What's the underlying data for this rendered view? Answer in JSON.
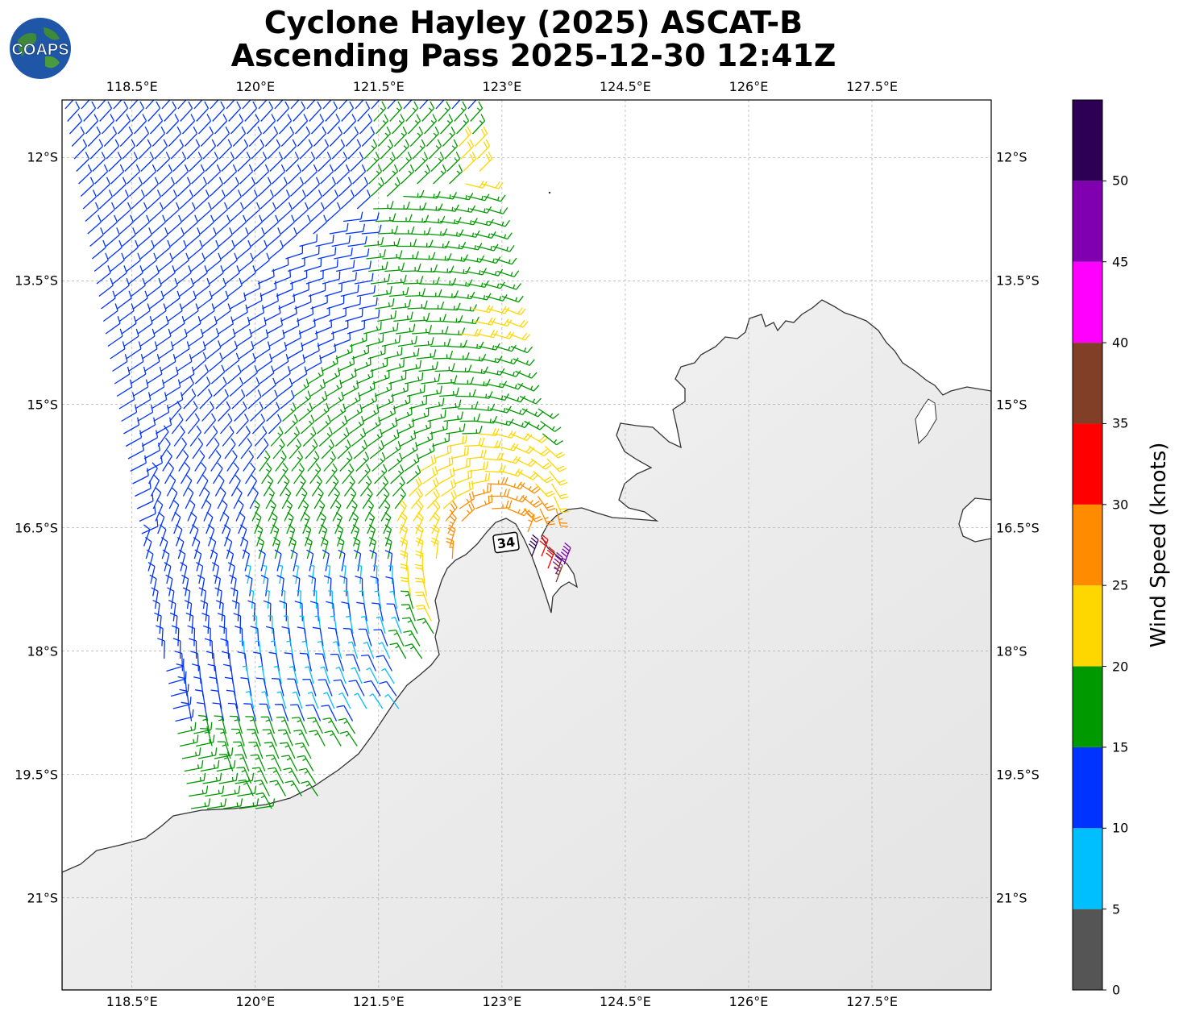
{
  "header": {
    "title_line1": "Cyclone Hayley (2025) ASCAT-B",
    "title_line2": "Ascending Pass 2025-12-30 12:41Z",
    "logo_text": "COAPS"
  },
  "map": {
    "lon_ticks": [
      "118.5°E",
      "120°E",
      "121.5°E",
      "123°E",
      "124.5°E",
      "126°E",
      "127.5°E"
    ],
    "lat_ticks": [
      "12°S",
      "13.5°S",
      "15°S",
      "16.5°S",
      "18°S",
      "19.5°S",
      "21°S"
    ],
    "storm_marker": {
      "label": "34",
      "lon": 123.05,
      "lat": -16.68
    },
    "land_color": "#f2f2f2",
    "coast_color": "#333333",
    "grid_color": "#aaaaaa"
  },
  "colorbar": {
    "title": "Wind Speed (knots)",
    "tick_labels": [
      "0",
      "5",
      "10",
      "15",
      "20",
      "25",
      "30",
      "35",
      "40",
      "45",
      "50"
    ],
    "bins": [
      {
        "min": 0,
        "max": 5,
        "color": "#555555"
      },
      {
        "min": 5,
        "max": 10,
        "color": "#00bfff"
      },
      {
        "min": 10,
        "max": 15,
        "color": "#0033ff"
      },
      {
        "min": 15,
        "max": 20,
        "color": "#009900"
      },
      {
        "min": 20,
        "max": 25,
        "color": "#ffd700"
      },
      {
        "min": 25,
        "max": 30,
        "color": "#ff8c00"
      },
      {
        "min": 30,
        "max": 35,
        "color": "#ff0000"
      },
      {
        "min": 35,
        "max": 40,
        "color": "#803f26"
      },
      {
        "min": 40,
        "max": 45,
        "color": "#ff00ff"
      },
      {
        "min": 45,
        "max": 50,
        "color": "#8000b0"
      },
      {
        "min": 50,
        "max": 55,
        "color": "#2d0055"
      }
    ]
  }
}
